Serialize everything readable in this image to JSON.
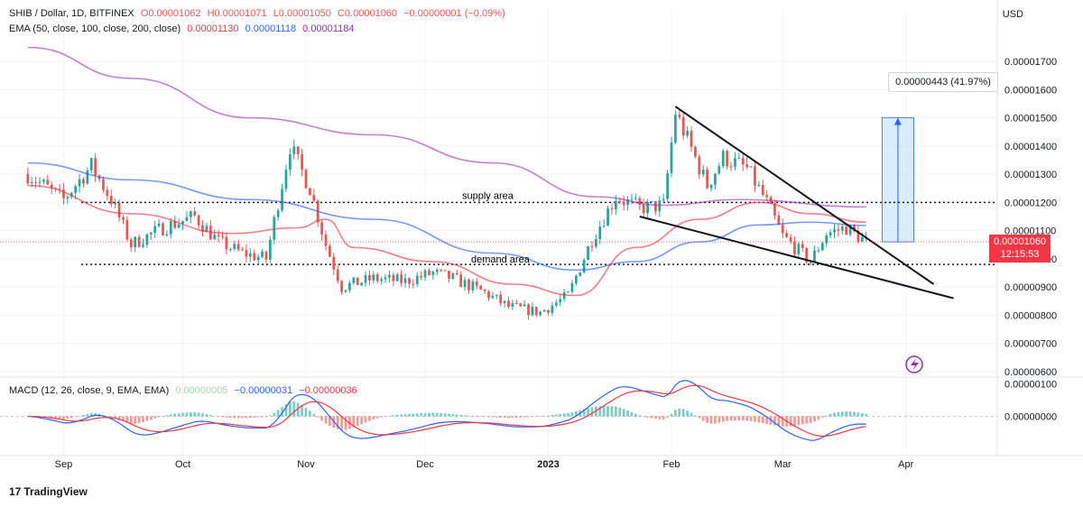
{
  "header": {
    "symbol": "SHIB / Dollar, 1D, BITFINEX",
    "open": "O0.00001062",
    "high": "H0.00001071",
    "low": "L0.00001050",
    "close": "C0.00001060",
    "change": "−0.00000001 (−0.09%)",
    "ema_label": "EMA (50, close, 100, close, 200, close)",
    "ema50_value": "0.00001130",
    "ema100_value": "0.00001118",
    "ema200_value": "0.00001184",
    "macd_label": "MACD (12, 26, close, 9, EMA, EMA)",
    "macd_hist_value": "0.00000005",
    "macd_value": "−0.00000031",
    "signal_value": "−0.00000036"
  },
  "currency": "USD",
  "last_price": "0.00001060",
  "countdown": "12:15:53",
  "measure_label": "0.00000443 (41.97%)",
  "annotations": {
    "supply": "supply area",
    "demand": "demand area"
  },
  "brand": "TradingView",
  "colors": {
    "up": "#26a69a",
    "down": "#ef5350",
    "ema50": "#f23645",
    "ema100": "#2962ff",
    "ema200": "#9c27b0",
    "measure_fill": "#bbdefb",
    "last_price": "#f23645"
  },
  "chart_data": {
    "type": "candlestick",
    "x_tick_labels": [
      "Sep",
      "Oct",
      "Nov",
      "Dec",
      "2023",
      "Feb",
      "Mar",
      "Apr"
    ],
    "y_tick_labels": [
      "0.00001700",
      "0.00001600",
      "0.00001500",
      "0.00001400",
      "0.00001300",
      "0.00001200",
      "0.00001100",
      "0.00001000",
      "0.00000900",
      "0.00000800",
      "0.00000700",
      "0.00000600"
    ],
    "ylim": [
      5.9e-06,
      1.79e-05
    ],
    "macd_y_tick_labels": [
      "0.00000100",
      "0.00000000"
    ],
    "price_path": [
      [
        "2022-08-25",
        1.3e-05
      ],
      [
        "2022-09-03",
        1.21e-05
      ],
      [
        "2022-09-10",
        1.33e-05
      ],
      [
        "2022-09-15",
        1.21e-05
      ],
      [
        "2022-09-20",
        1.05e-05
      ],
      [
        "2022-09-28",
        1.11e-05
      ],
      [
        "2022-10-06",
        1.15e-05
      ],
      [
        "2022-10-12",
        1.06e-05
      ],
      [
        "2022-10-18",
        1.02e-05
      ],
      [
        "2022-10-24",
        1e-05
      ],
      [
        "2022-10-30",
        1.4e-05
      ],
      [
        "2022-11-04",
        1.25e-05
      ],
      [
        "2022-11-08",
        1.05e-05
      ],
      [
        "2022-11-12",
        9e-06
      ],
      [
        "2022-11-20",
        9.3e-06
      ],
      [
        "2022-11-28",
        9.2e-06
      ],
      [
        "2022-12-05",
        9.5e-06
      ],
      [
        "2022-12-10",
        9.3e-06
      ],
      [
        "2022-12-18",
        8.8e-06
      ],
      [
        "2022-12-24",
        8.3e-06
      ],
      [
        "2023-01-01",
        8.1e-06
      ],
      [
        "2023-01-08",
        8.7e-06
      ],
      [
        "2023-01-14",
        1.07e-05
      ],
      [
        "2023-01-20",
        1.22e-05
      ],
      [
        "2023-01-26",
        1.18e-05
      ],
      [
        "2023-02-01",
        1.19e-05
      ],
      [
        "2023-02-04",
        1.52e-05
      ],
      [
        "2023-02-08",
        1.39e-05
      ],
      [
        "2023-02-12",
        1.26e-05
      ],
      [
        "2023-02-16",
        1.36e-05
      ],
      [
        "2023-02-22",
        1.32e-05
      ],
      [
        "2023-02-27",
        1.2e-05
      ],
      [
        "2023-03-03",
        1.08e-05
      ],
      [
        "2023-03-10",
        9.9e-06
      ],
      [
        "2023-03-14",
        1.09e-05
      ],
      [
        "2023-03-19",
        1.11e-05
      ],
      [
        "2023-03-24",
        1.06e-05
      ]
    ],
    "ema50": [
      [
        "2022-08-25",
        1.26e-05
      ],
      [
        "2022-09-20",
        1.16e-05
      ],
      [
        "2022-10-15",
        1.09e-05
      ],
      [
        "2022-11-01",
        1.11e-05
      ],
      [
        "2022-11-08",
        1.14e-05
      ],
      [
        "2022-11-15",
        1.04e-05
      ],
      [
        "2022-12-05",
        9.9e-06
      ],
      [
        "2022-12-25",
        9.1e-06
      ],
      [
        "2023-01-10",
        8.7e-06
      ],
      [
        "2023-01-25",
        1.04e-05
      ],
      [
        "2023-02-10",
        1.14e-05
      ],
      [
        "2023-02-25",
        1.2e-05
      ],
      [
        "2023-03-10",
        1.16e-05
      ],
      [
        "2023-03-24",
        1.13e-05
      ]
    ],
    "ema100": [
      [
        "2022-08-25",
        1.34e-05
      ],
      [
        "2022-09-20",
        1.28e-05
      ],
      [
        "2022-10-20",
        1.21e-05
      ],
      [
        "2022-11-20",
        1.14e-05
      ],
      [
        "2022-12-20",
        1.02e-05
      ],
      [
        "2023-01-10",
        9.6e-06
      ],
      [
        "2023-01-25",
        9.9e-06
      ],
      [
        "2023-02-10",
        1.06e-05
      ],
      [
        "2023-02-25",
        1.12e-05
      ],
      [
        "2023-03-10",
        1.13e-05
      ],
      [
        "2023-03-24",
        1.118e-05
      ]
    ],
    "ema200": [
      [
        "2022-08-25",
        1.75e-05
      ],
      [
        "2022-09-20",
        1.64e-05
      ],
      [
        "2022-10-20",
        1.5e-05
      ],
      [
        "2022-11-20",
        1.44e-05
      ],
      [
        "2022-12-20",
        1.34e-05
      ],
      [
        "2023-01-15",
        1.22e-05
      ],
      [
        "2023-02-01",
        1.19e-05
      ],
      [
        "2023-02-20",
        1.21e-05
      ],
      [
        "2023-03-24",
        1.184e-05
      ]
    ],
    "levels": {
      "supply": 1.2e-05,
      "demand": 9.8e-06
    },
    "trendlines": [
      {
        "from": [
          "2023-02-04",
          1.54e-05
        ],
        "to": [
          "2023-04-10",
          9.1e-06
        ]
      },
      {
        "from": [
          "2023-01-26",
          1.15e-05
        ],
        "to": [
          "2023-04-15",
          8.6e-06
        ]
      }
    ],
    "measure": {
      "x_start": "2023-03-28",
      "x_end": "2023-04-05",
      "from": 1.06e-05,
      "to": 1.5e-05
    }
  }
}
